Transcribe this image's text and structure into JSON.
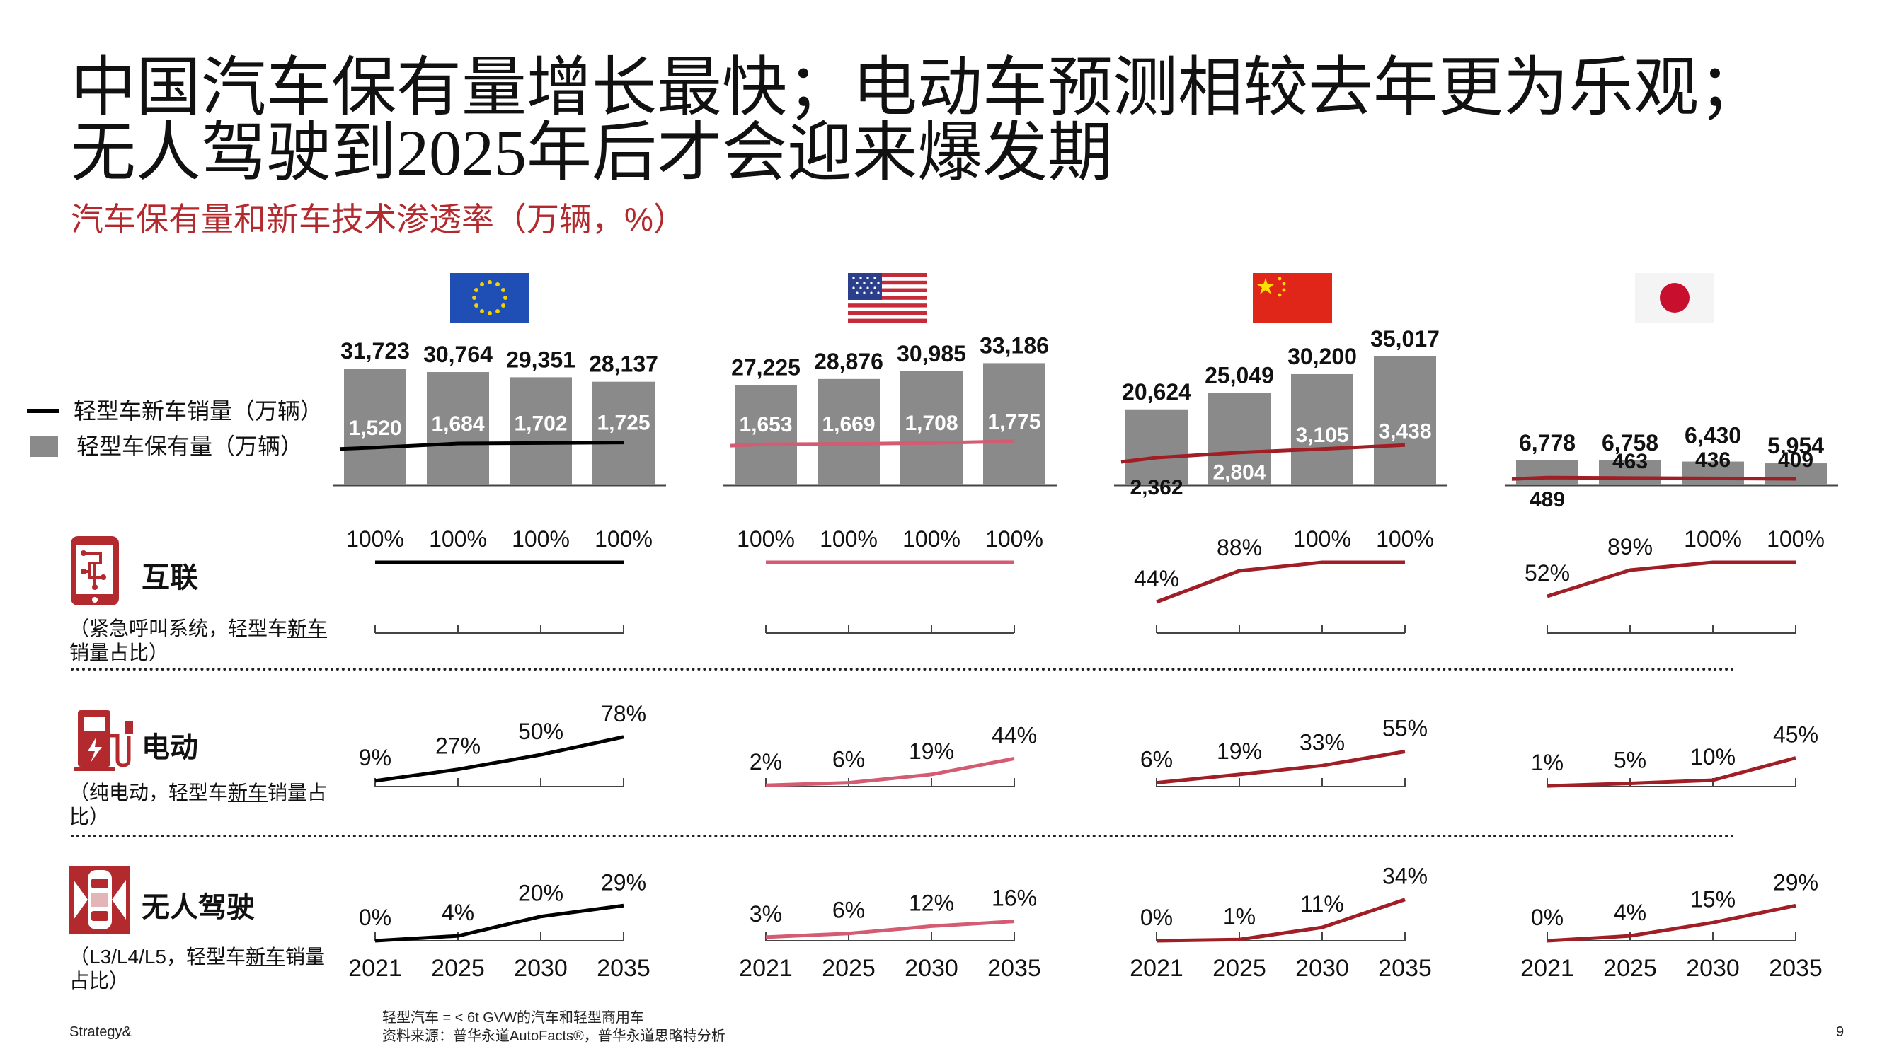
{
  "title": "中国汽车保有量增长最快；电动车预测相较去年更为乐观；无人驾驶到2025年后才会迎来爆发期",
  "subtitle": "汽车保有量和新车技术渗透率（万辆，%）",
  "legend": {
    "sales_label": "轻型车新车销量（万辆）",
    "stock_label": "轻型车保有量（万辆）"
  },
  "rows": [
    {
      "key": "connected",
      "title": "互联",
      "sub_a": "（紧急呼叫系统，轻型车",
      "sub_u": "新车",
      "sub_b": "销量占比）"
    },
    {
      "key": "electric",
      "title": "电动",
      "sub_a": "（纯电动，轻型车",
      "sub_u": "新车",
      "sub_b": "销量占比）"
    },
    {
      "key": "autonomous",
      "title": "无人驾驶",
      "sub_a": "（L3/L4/L5，轻型车",
      "sub_u": "新车",
      "sub_b": "销量占比）"
    }
  ],
  "footer": {
    "brand": "Strategy&",
    "note1": "轻型汽车 = < 6t GVW的汽车和轻型商用车",
    "note2": "资料来源：普华永道AutoFacts®，普华永道思略特分析",
    "page": "9"
  },
  "colors": {
    "accent": "#b22a2e",
    "bar": "#8a8a8a",
    "eu_line": "#000000",
    "us_line": "#d35b72",
    "cn_line": "#a01f26",
    "jp_line": "#a01f26"
  },
  "chart_data": {
    "type": "bar",
    "years": [
      "2021",
      "2025",
      "2030",
      "2035"
    ],
    "regions": [
      {
        "name": "EU",
        "flag": "eu-flag",
        "stock": [
          31723,
          30764,
          29351,
          28137
        ],
        "stock_labels": [
          "31,723",
          "30,764",
          "29,351",
          "28,137"
        ],
        "sales": [
          1520,
          1684,
          1702,
          1725
        ],
        "sales_labels": [
          "1,520",
          "1,684",
          "1,702",
          "1,725"
        ],
        "connected": [
          100,
          100,
          100,
          100
        ],
        "connected_labels": [
          "100%",
          "100%",
          "100%",
          "100%"
        ],
        "electric": [
          9,
          27,
          50,
          78
        ],
        "electric_labels": [
          "9%",
          "27%",
          "50%",
          "78%"
        ],
        "autonomous": [
          0,
          4,
          20,
          29
        ],
        "autonomous_labels": [
          "0%",
          "4%",
          "20%",
          "29%"
        ]
      },
      {
        "name": "US",
        "flag": "us-flag",
        "stock": [
          27225,
          28876,
          30985,
          33186
        ],
        "stock_labels": [
          "27,225",
          "28,876",
          "30,985",
          "33,186"
        ],
        "sales": [
          1653,
          1669,
          1708,
          1775
        ],
        "sales_labels": [
          "1,653",
          "1,669",
          "1,708",
          "1,775"
        ],
        "connected": [
          100,
          100,
          100,
          100
        ],
        "connected_labels": [
          "100%",
          "100%",
          "100%",
          "100%"
        ],
        "electric": [
          2,
          6,
          19,
          44
        ],
        "electric_labels": [
          "2%",
          "6%",
          "19%",
          "44%"
        ],
        "autonomous": [
          3,
          6,
          12,
          16
        ],
        "autonomous_labels": [
          "3%",
          "6%",
          "12%",
          "16%"
        ]
      },
      {
        "name": "China",
        "flag": "cn-flag",
        "stock": [
          20624,
          25049,
          30200,
          35017
        ],
        "stock_labels": [
          "20,624",
          "25,049",
          "30,200",
          "35,017"
        ],
        "sales": [
          2362,
          2804,
          3105,
          3438
        ],
        "sales_labels": [
          "2,362",
          "2,804",
          "3,105",
          "3,438"
        ],
        "connected": [
          44,
          88,
          100,
          100
        ],
        "connected_labels": [
          "44%",
          "88%",
          "100%",
          "100%"
        ],
        "electric": [
          6,
          19,
          33,
          55
        ],
        "electric_labels": [
          "6%",
          "19%",
          "33%",
          "55%"
        ],
        "autonomous": [
          0,
          1,
          11,
          34
        ],
        "autonomous_labels": [
          "0%",
          "1%",
          "11%",
          "34%"
        ]
      },
      {
        "name": "Japan",
        "flag": "jp-flag",
        "stock": [
          6778,
          6758,
          6430,
          5954
        ],
        "stock_labels": [
          "6,778",
          "6,758",
          "6,430",
          "5,954"
        ],
        "sales": [
          489,
          463,
          436,
          409
        ],
        "sales_labels": [
          "489",
          "463",
          "436",
          "409"
        ],
        "connected": [
          52,
          89,
          100,
          100
        ],
        "connected_labels": [
          "52%",
          "89%",
          "100%",
          "100%"
        ],
        "electric": [
          1,
          5,
          10,
          45
        ],
        "electric_labels": [
          "1%",
          "5%",
          "10%",
          "45%"
        ],
        "autonomous": [
          0,
          4,
          15,
          29
        ],
        "autonomous_labels": [
          "0%",
          "4%",
          "15%",
          "29%"
        ]
      }
    ]
  }
}
